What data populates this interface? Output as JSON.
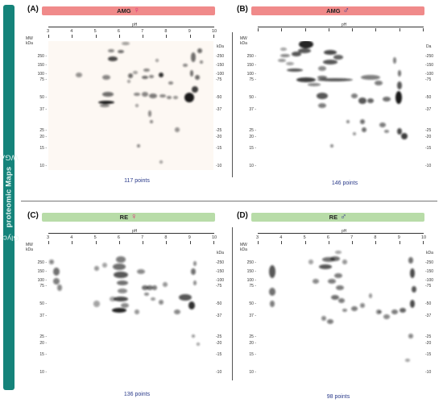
{
  "side_label": {
    "prefix": "Glyco",
    "bold": "proteomic",
    "middle": " Maps",
    "suffix": " WGA"
  },
  "axis": {
    "ph": "pH",
    "mw": "MW",
    "kda": "kDa",
    "da": "Da"
  },
  "panels": [
    {
      "letter": "(A)",
      "title": "AMG",
      "sex": "♀",
      "points": "117 points"
    },
    {
      "letter": "(B)",
      "title": "AMG",
      "sex": "♂",
      "points": "146  points"
    },
    {
      "letter": "(C)",
      "title": "RE",
      "sex": "♀",
      "points": "136 points"
    },
    {
      "letter": "(D)",
      "title": "RE",
      "sex": "♂",
      "points": "98  points"
    }
  ],
  "ph_ticks": [
    "3",
    "4",
    "5",
    "6",
    "7",
    "8",
    "9",
    "10"
  ],
  "mw_left": [
    "250",
    "150",
    "100",
    "75",
    "50",
    "37",
    "25",
    "20",
    "15",
    "10"
  ],
  "colors": {
    "amg_banner": "#f08a8a",
    "re_banner": "#b8dca8",
    "side_bar": "#15837a",
    "female": "#e0307a",
    "male": "#3a3a8c",
    "points": "#2a3a8a"
  }
}
